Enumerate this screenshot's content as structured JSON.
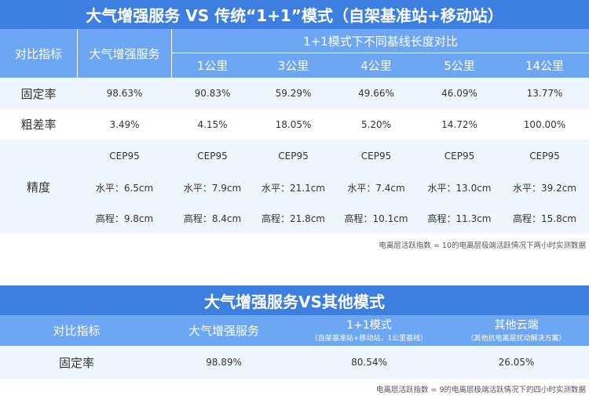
{
  "table1": {
    "title": "大气增强服务 VS 传统“1+1”模式（自架基准站+移动站）",
    "col_metric": "对比指标",
    "col_enhanced": "大气增强服务",
    "col_group": "1+1模式下不同基线长度对比",
    "baselines": [
      "1公里",
      "3公里",
      "4公里",
      "5公里",
      "14公里"
    ],
    "rows": {
      "fix_rate": {
        "label": "固定率",
        "values": [
          "98.63%",
          "90.83%",
          "59.29%",
          "49.66%",
          "46.09%",
          "13.77%"
        ]
      },
      "gross_error": {
        "label": "粗差率",
        "values": [
          "3.49%",
          "4.15%",
          "18.05%",
          "5.20%",
          "14.72%",
          "100.00%"
        ]
      },
      "precision": {
        "label": "精度",
        "cep": [
          "CEP95",
          "CEP95",
          "CEP95",
          "CEP95",
          "CEP95",
          "CEP95"
        ],
        "horizontal": [
          "水平：6.5cm",
          "水平：7.9cm",
          "水平：21.1cm",
          "水平：7.4cm",
          "水平：13.0cm",
          "水平：39.2cm"
        ],
        "vertical": [
          "高程：9.8cm",
          "高程：8.4cm",
          "高程：21.8cm",
          "高程：10.1cm",
          "高程：11.3cm",
          "高程：15.8cm"
        ]
      }
    },
    "note": "电离层活跃指数 = 10的电离层极端活跃情况下两小时实测数据"
  },
  "table2": {
    "title": "大气增强服务VS其他模式",
    "col_metric": "对比指标",
    "col_enhanced": "大气增强服务",
    "col_11": "1+1模式",
    "col_11_sub": "（自架基准站+移动站，1公里基线）",
    "col_cloud": "其他云端",
    "col_cloud_sub": "（其他抗电离层扰动解决方案）",
    "row_label": "固定率",
    "values": [
      "98.89%",
      "80.54%",
      "26.05%"
    ],
    "note": "电离层活跃指数 = 9的电离层极端活跃情况下的四小时实测数据"
  },
  "colors": {
    "title_bar": "#3d7fe0",
    "header": "#6da6f2",
    "row_light": "#f0f6fd",
    "row_white": "#ffffff"
  }
}
